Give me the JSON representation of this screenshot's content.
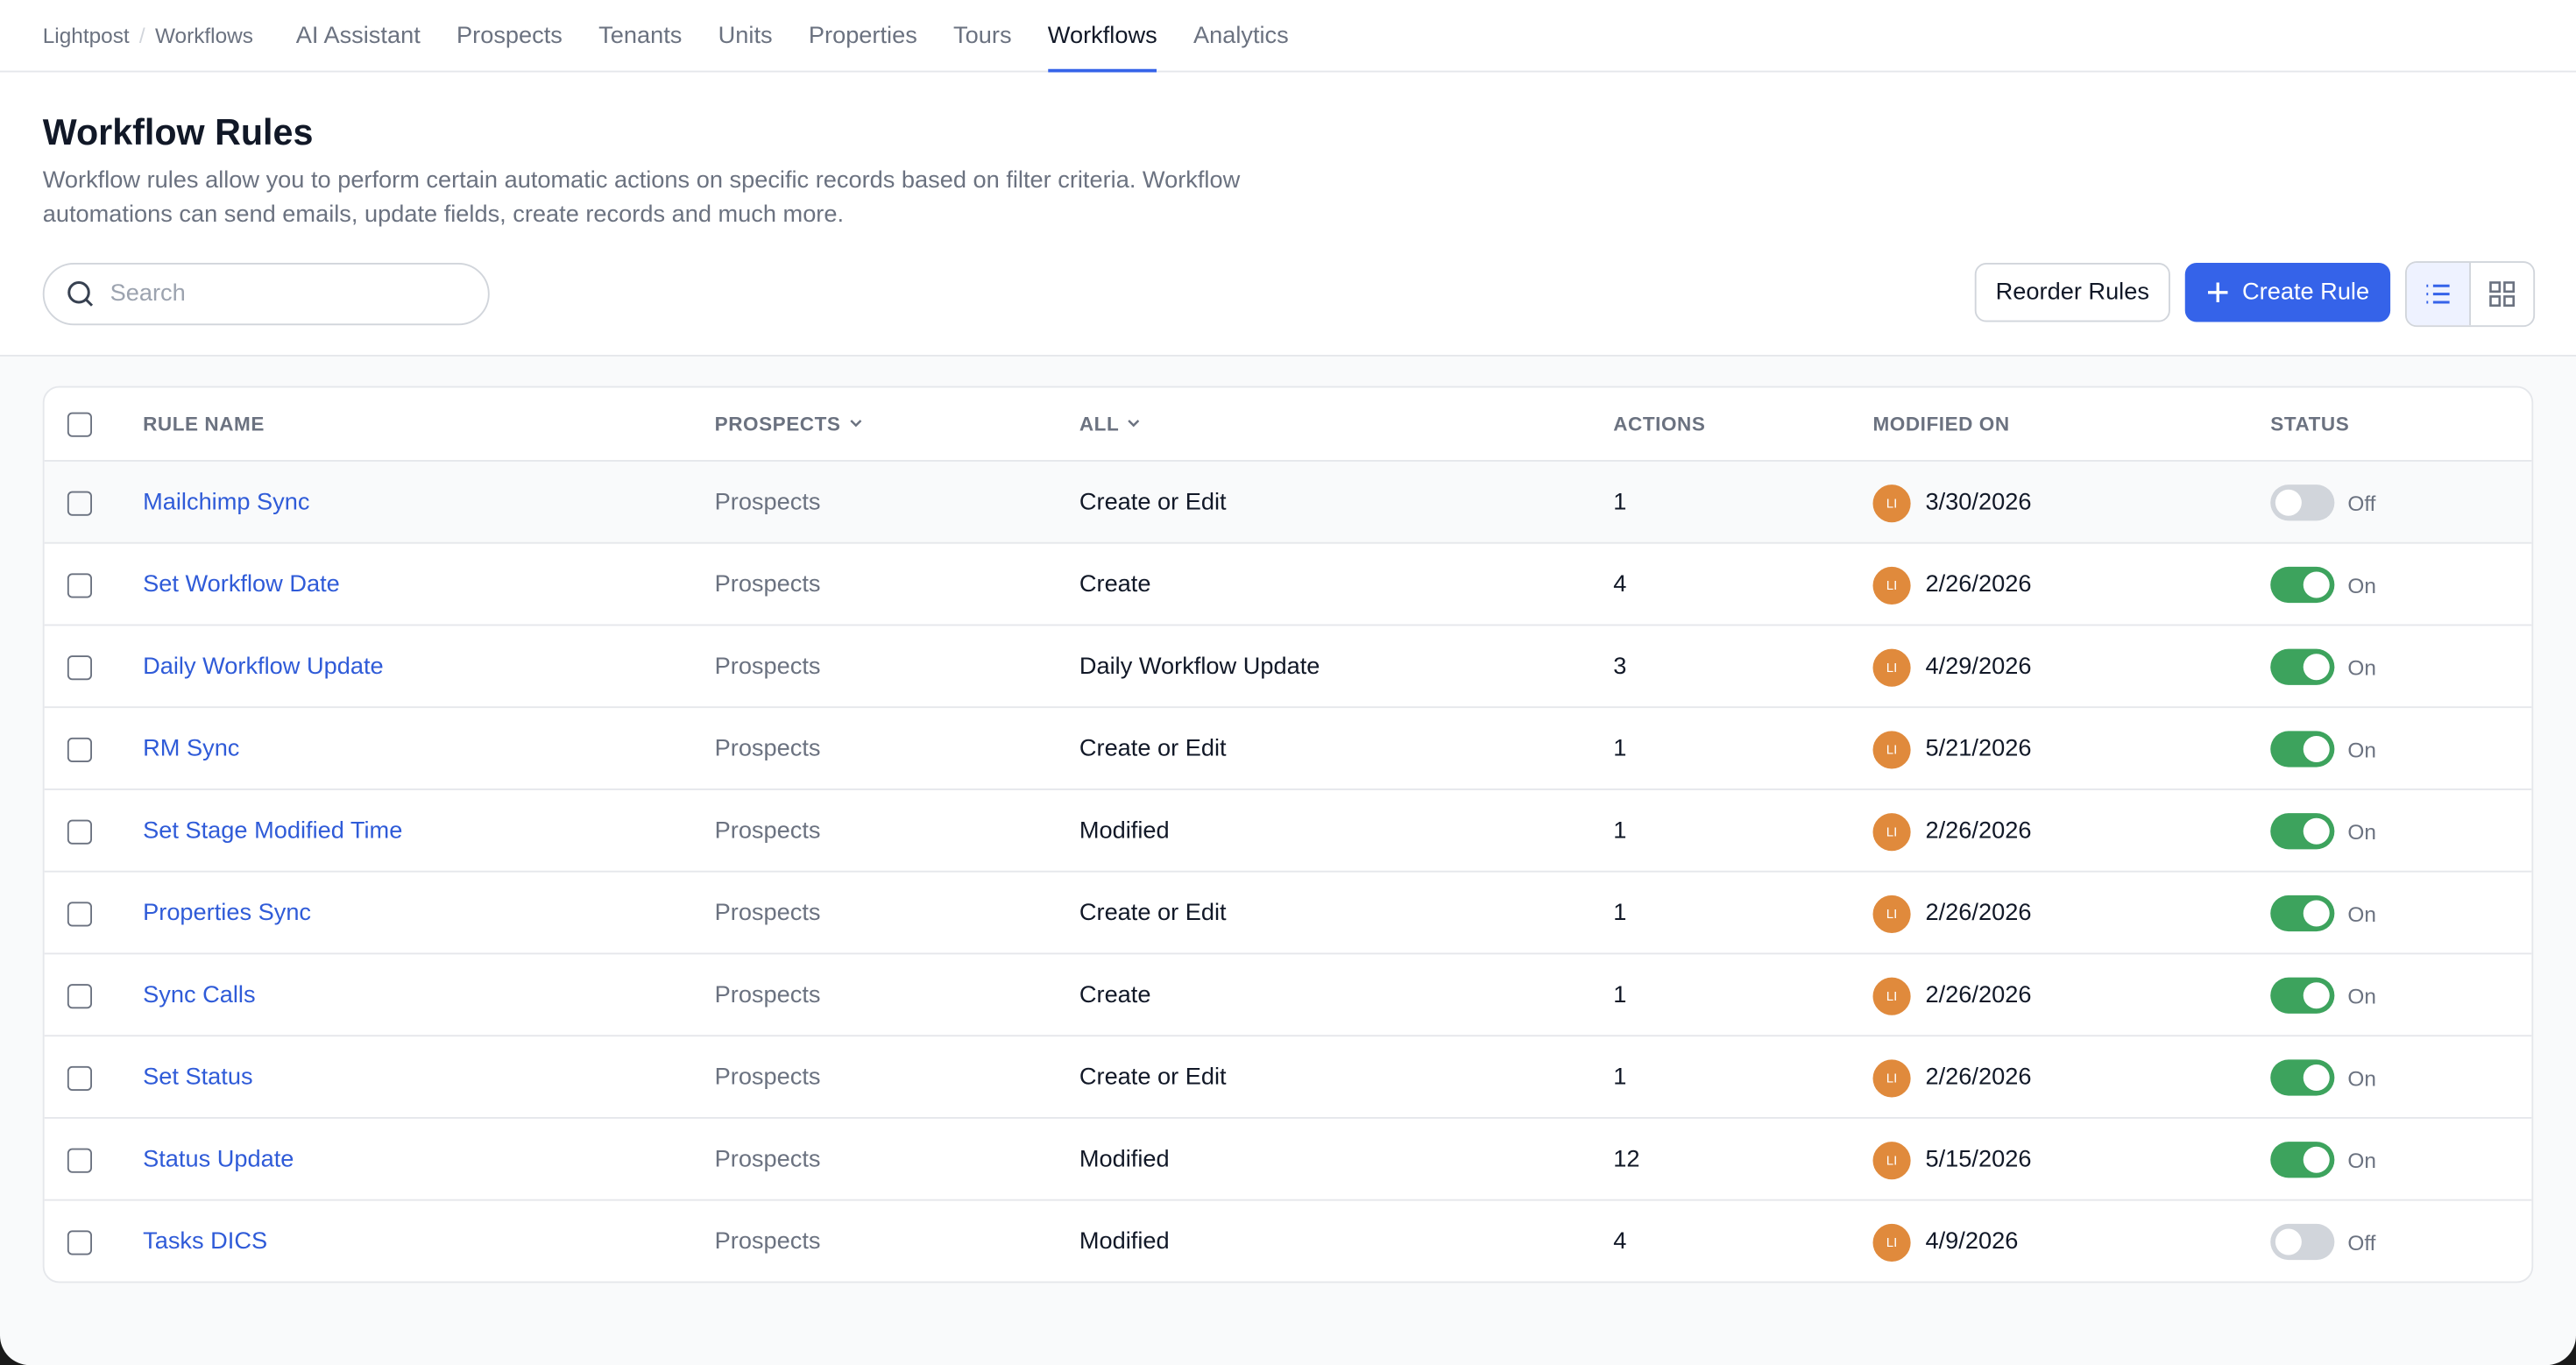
{
  "nav": {
    "breadcrumb": [
      "Lightpost",
      "Workflows"
    ],
    "tabs": [
      "AI Assistant",
      "Prospects",
      "Tenants",
      "Units",
      "Properties",
      "Tours",
      "Workflows",
      "Analytics"
    ],
    "active_tab": 6
  },
  "header": {
    "title": "Workflow Rules",
    "description": "Workflow rules allow you to perform certain automatic actions on specific records based on filter criteria. Workflow automations can send emails, update fields, create records and much more.",
    "search_placeholder": "Search",
    "reorder_button": "Reorder Rules",
    "create_button": "Create Rule"
  },
  "table": {
    "columns": [
      "RULE NAME",
      "PROSPECTS",
      "ALL",
      "ACTIONS",
      "MODIFIED ON",
      "STATUS"
    ],
    "rows": [
      {
        "name": "Mailchimp Sync",
        "object": "Prospects",
        "trigger": "Create or Edit",
        "actions": 1,
        "avatar": "LI",
        "modified": "3/30/2026",
        "status": "Off",
        "enabled": false
      },
      {
        "name": "Set Workflow Date",
        "object": "Prospects",
        "trigger": "Create",
        "actions": 4,
        "avatar": "LI",
        "modified": "2/26/2026",
        "status": "On",
        "enabled": true
      },
      {
        "name": "Daily Workflow Update",
        "object": "Prospects",
        "trigger": "Daily Workflow Update",
        "actions": 3,
        "avatar": "LI",
        "modified": "4/29/2026",
        "status": "On",
        "enabled": true
      },
      {
        "name": "RM Sync",
        "object": "Prospects",
        "trigger": "Create or Edit",
        "actions": 1,
        "avatar": "LI",
        "modified": "5/21/2026",
        "status": "On",
        "enabled": true
      },
      {
        "name": "Set Stage Modified Time",
        "object": "Prospects",
        "trigger": "Modified",
        "actions": 1,
        "avatar": "LI",
        "modified": "2/26/2026",
        "status": "On",
        "enabled": true
      },
      {
        "name": "Properties Sync",
        "object": "Prospects",
        "trigger": "Create or Edit",
        "actions": 1,
        "avatar": "LI",
        "modified": "2/26/2026",
        "status": "On",
        "enabled": true
      },
      {
        "name": "Sync Calls",
        "object": "Prospects",
        "trigger": "Create",
        "actions": 1,
        "avatar": "LI",
        "modified": "2/26/2026",
        "status": "On",
        "enabled": true
      },
      {
        "name": "Set Status",
        "object": "Prospects",
        "trigger": "Create or Edit",
        "actions": 1,
        "avatar": "LI",
        "modified": "2/26/2026",
        "status": "On",
        "enabled": true
      },
      {
        "name": "Status Update",
        "object": "Prospects",
        "trigger": "Modified",
        "actions": 12,
        "avatar": "LI",
        "modified": "5/15/2026",
        "status": "On",
        "enabled": true
      },
      {
        "name": "Tasks DICS",
        "object": "Prospects",
        "trigger": "Modified",
        "actions": 4,
        "avatar": "LI",
        "modified": "4/9/2026",
        "status": "Off",
        "enabled": false
      }
    ]
  }
}
